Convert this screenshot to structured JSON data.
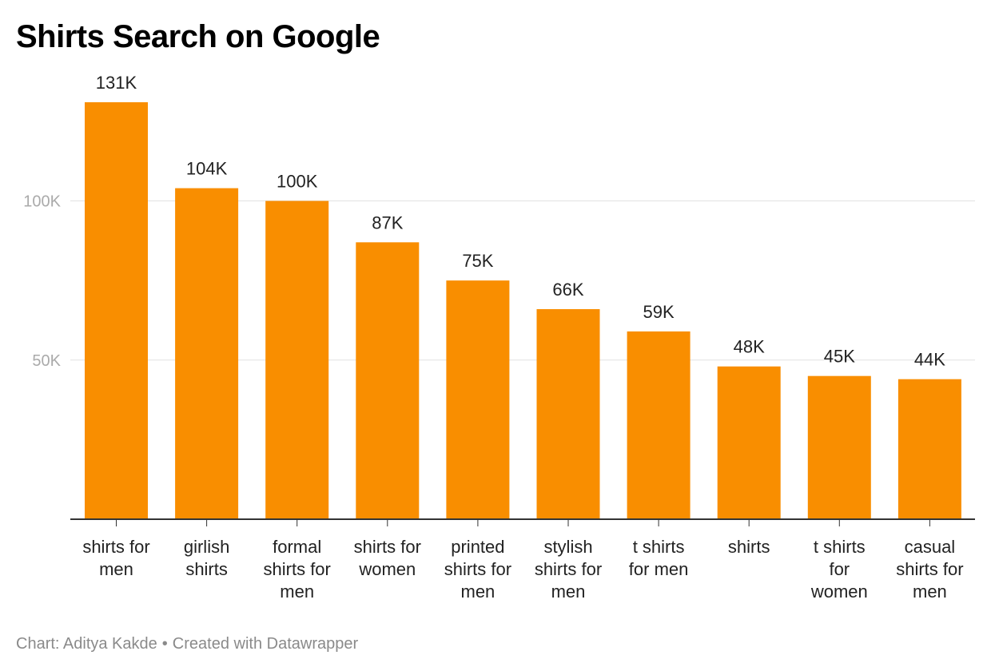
{
  "title": "Shirts Search on Google",
  "footer": {
    "credit": "Chart: Aditya Kakde",
    "separator": "•",
    "tool": "Created with Datawrapper"
  },
  "colors": {
    "bar": "#F98E00",
    "grid": "#e2e2e2",
    "axis": "#333333",
    "tick_label": "#aaaaaa",
    "value_label": "#222222",
    "category_label": "#222222"
  },
  "chart_data": {
    "type": "bar",
    "title": "Shirts Search on Google",
    "xlabel": "",
    "ylabel": "",
    "categories": [
      "shirts for men",
      "girlish shirts",
      "formal shirts for men",
      "shirts for women",
      "printed shirts for men",
      "stylish shirts for men",
      "t shirts for men",
      "shirts",
      "t shirts for women",
      "casual shirts for men"
    ],
    "category_label_lines": [
      [
        "shirts for",
        "men"
      ],
      [
        "girlish",
        "shirts"
      ],
      [
        "formal",
        "shirts for",
        "men"
      ],
      [
        "shirts for",
        "women"
      ],
      [
        "printed",
        "shirts for",
        "men"
      ],
      [
        "stylish",
        "shirts for",
        "men"
      ],
      [
        "t shirts",
        "for men"
      ],
      [
        "shirts"
      ],
      [
        "t shirts",
        "for",
        "women"
      ],
      [
        "casual",
        "shirts for",
        "men"
      ]
    ],
    "values": [
      131000,
      104000,
      100000,
      87000,
      75000,
      66000,
      59000,
      48000,
      45000,
      44000
    ],
    "data_labels": [
      "131K",
      "104K",
      "100K",
      "87K",
      "75K",
      "66K",
      "59K",
      "48K",
      "45K",
      "44K"
    ],
    "y_ticks": [
      50000,
      100000
    ],
    "y_tick_labels": [
      "50K",
      "100K"
    ],
    "ylim": [
      0,
      131000
    ],
    "grid": true,
    "legend": "none"
  }
}
